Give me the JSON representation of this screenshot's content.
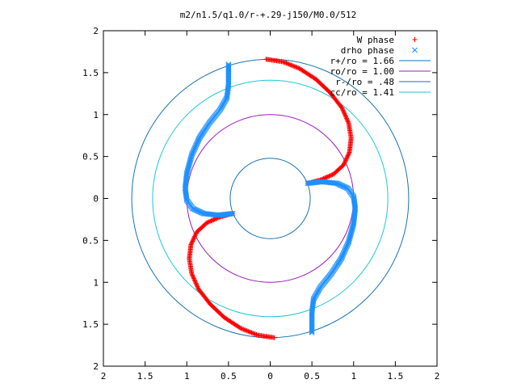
{
  "chart_data": {
    "type": "scatter",
    "title": "m2/n1.5/q1.0/r-+.29-j150/M0.0/512",
    "xlabel": "",
    "ylabel": "",
    "xlim": [
      -2,
      2
    ],
    "ylim": [
      -2,
      2
    ],
    "x_tick_values": [
      -2,
      -1.5,
      -1,
      -0.5,
      0,
      0.5,
      1,
      1.5,
      2
    ],
    "x_tick_labels": [
      "2",
      "1.5",
      "1",
      "0.5",
      "0",
      "0.5",
      "1",
      "1.5",
      "2"
    ],
    "y_tick_values": [
      2,
      1.5,
      1,
      0.5,
      0,
      -0.5,
      -1,
      -1.5,
      -2
    ],
    "y_tick_labels": [
      "2",
      "1.5",
      "1",
      "0.5",
      "0",
      "0.5",
      "1",
      "1.5",
      "2"
    ],
    "grid": false,
    "legend_position": "top-right",
    "series": [
      {
        "name": "W phase",
        "marker": "plus",
        "color": "#ff0000",
        "arms": [
          [
            [
              -0.05,
              1.66
            ],
            [
              0.15,
              1.63
            ],
            [
              0.35,
              1.55
            ],
            [
              0.55,
              1.42
            ],
            [
              0.72,
              1.26
            ],
            [
              0.86,
              1.08
            ],
            [
              0.94,
              0.9
            ],
            [
              0.97,
              0.72
            ],
            [
              0.95,
              0.55
            ],
            [
              0.88,
              0.4
            ],
            [
              0.76,
              0.29
            ],
            [
              0.6,
              0.22
            ],
            [
              0.45,
              0.18
            ]
          ],
          [
            [
              0.05,
              -1.66
            ],
            [
              -0.15,
              -1.63
            ],
            [
              -0.35,
              -1.55
            ],
            [
              -0.55,
              -1.42
            ],
            [
              -0.72,
              -1.26
            ],
            [
              -0.86,
              -1.08
            ],
            [
              -0.94,
              -0.9
            ],
            [
              -0.97,
              -0.72
            ],
            [
              -0.95,
              -0.55
            ],
            [
              -0.88,
              -0.4
            ],
            [
              -0.76,
              -0.29
            ],
            [
              -0.6,
              -0.22
            ],
            [
              -0.45,
              -0.18
            ]
          ]
        ]
      },
      {
        "name": "drho phase",
        "marker": "cross",
        "color": "#1e90ff",
        "arms": [
          [
            [
              0.45,
              0.18
            ],
            [
              0.62,
              0.2
            ],
            [
              0.8,
              0.18
            ],
            [
              0.93,
              0.12
            ],
            [
              1.0,
              0.02
            ],
            [
              1.02,
              -0.12
            ],
            [
              1.0,
              -0.3
            ],
            [
              0.94,
              -0.52
            ],
            [
              0.85,
              -0.72
            ],
            [
              0.73,
              -0.9
            ],
            [
              0.6,
              -1.06
            ],
            [
              0.52,
              -1.2
            ],
            [
              0.5,
              -1.35
            ],
            [
              0.5,
              -1.5
            ],
            [
              0.5,
              -1.6
            ]
          ],
          [
            [
              -0.45,
              -0.18
            ],
            [
              -0.62,
              -0.2
            ],
            [
              -0.8,
              -0.18
            ],
            [
              -0.93,
              -0.12
            ],
            [
              -1.0,
              -0.02
            ],
            [
              -1.02,
              0.12
            ],
            [
              -1.0,
              0.3
            ],
            [
              -0.94,
              0.52
            ],
            [
              -0.85,
              0.72
            ],
            [
              -0.73,
              0.9
            ],
            [
              -0.6,
              1.06
            ],
            [
              -0.52,
              1.2
            ],
            [
              -0.5,
              1.35
            ],
            [
              -0.5,
              1.5
            ],
            [
              -0.5,
              1.6
            ]
          ]
        ]
      }
    ],
    "circles": [
      {
        "label": "r+/ro = 1.66",
        "radius": 1.66,
        "color": "#1a73b5"
      },
      {
        "label": "ro/ro = 1.00",
        "radius": 1.0,
        "color": "#9b1bbf"
      },
      {
        "label": "r-/ro = .48",
        "radius": 0.48,
        "color": "#1a73b5"
      },
      {
        "label": "cc/ro = 1.41",
        "radius": 1.41,
        "color": "#1ec8d8"
      }
    ]
  }
}
